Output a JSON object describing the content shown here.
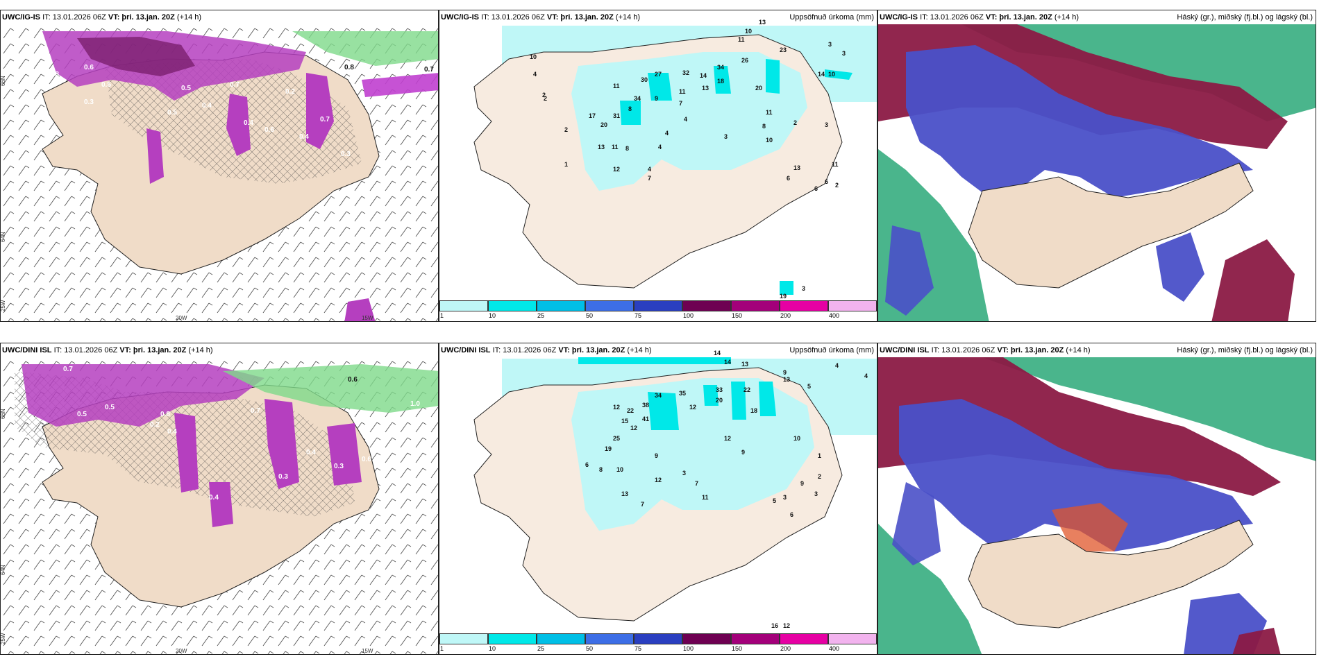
{
  "rows": [
    {
      "model": "UWC/IG-IS",
      "it_label": "IT: 13.01.2026 06Z",
      "vt_label": "VT: þri. 13.jan. 20Z",
      "lead": "(+14 h)",
      "precip_title": "Uppsöfnuð úrkoma (mm)",
      "cloud_title": "Háský (gr.), miðský (fj.bl.) og lágský (bl.)",
      "cloud_model": "UWC/IG-IS",
      "precip_values": [
        "13",
        "10",
        "23",
        "3",
        "3",
        "11",
        "26",
        "14",
        "7",
        "34",
        "18",
        "27",
        "30",
        "32",
        "20",
        "11",
        "14",
        "13",
        "10",
        "11",
        "34",
        "8",
        "9",
        "4",
        "31",
        "20",
        "17",
        "13",
        "11",
        "8",
        "4",
        "7",
        "3",
        "10",
        "8",
        "11",
        "2",
        "13",
        "3",
        "6",
        "11",
        "12",
        "4",
        "7",
        "1",
        "2",
        "2",
        "4",
        "10",
        "6",
        "2",
        "6",
        "19",
        "3",
        "14",
        "2"
      ],
      "wind_values": [
        "0.8",
        "0.7",
        "0.6",
        "0.5",
        "0.5",
        "0.4",
        "0.3",
        "0.6",
        "0.8",
        "0.4",
        "0.7",
        "0.4",
        "0.3",
        "0.5",
        "0.2",
        "0.7",
        "0.4"
      ]
    },
    {
      "model": "UWC/DINI ISL",
      "it_label": "IT: 13.01.2026 06Z",
      "vt_label": "VT: þri. 13.jan. 20Z",
      "lead": "(+14 h)",
      "precip_title": "Uppsöfnuð úrkoma (mm)",
      "cloud_title": "Háský (gr.), miðský (fj.bl.) og lágský (bl.)",
      "cloud_model": "UWC/DINI ISL",
      "precip_values": [
        "14",
        "14",
        "13",
        "9",
        "13",
        "5",
        "4",
        "4",
        "22",
        "33",
        "20",
        "18",
        "35",
        "34",
        "38",
        "12",
        "12",
        "22",
        "41",
        "15",
        "12",
        "25",
        "19",
        "12",
        "9",
        "9",
        "6",
        "3",
        "12",
        "11",
        "13",
        "8",
        "10",
        "7",
        "10",
        "7",
        "5",
        "3",
        "9",
        "1",
        "2",
        "3",
        "6",
        "16",
        "12"
      ],
      "wind_values": [
        "0.7",
        "0.5",
        "0.4",
        "0.6",
        "0.3",
        "0.8",
        "0.2",
        "0.5",
        "0.4",
        "0.3",
        "0.6",
        "0.4",
        "1.0",
        "0.7",
        "0.5"
      ]
    }
  ],
  "legend": {
    "labels": [
      "1",
      "10",
      "25",
      "50",
      "75",
      "100",
      "150",
      "200",
      "400"
    ],
    "colors": [
      "#bff7f7",
      "#00e8e8",
      "#00bfe6",
      "#3d6ee6",
      "#2a3fc0",
      "#6e0052",
      "#a3007a",
      "#e600a3",
      "#f2b3ee"
    ]
  },
  "axes": {
    "lat_top": "66N",
    "lat_mid": "64N",
    "lon_left": "25W",
    "lon_mid": "20W",
    "lon_right": "15W"
  },
  "colors": {
    "land": "#f0dcc8",
    "precip_land": "#f7ebe0",
    "cloud_high": "#8b1a44",
    "cloud_mid": "#4a50c8",
    "cloud_low": "#2aa878"
  }
}
